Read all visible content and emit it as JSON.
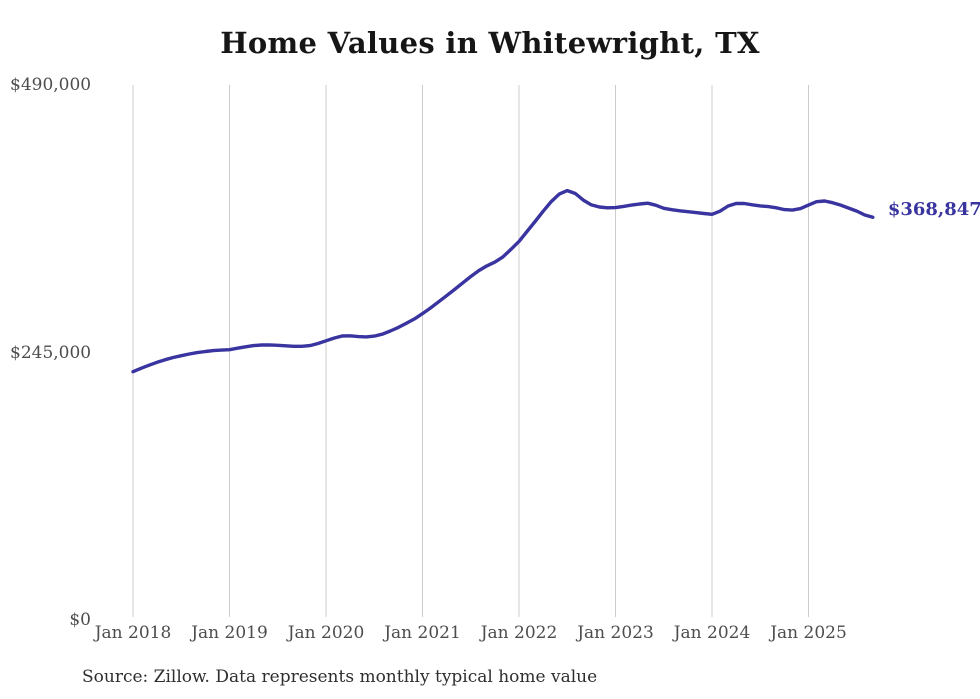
{
  "title": "Home Values in Whitewright, TX",
  "source_note": "Source: Zillow. Data represents monthly typical home value",
  "end_label": "$368,847",
  "colors": {
    "line": "#39349f",
    "grid": "#cccccc",
    "axis_text": "#4d4d4d",
    "title_text": "#161616",
    "source_text": "#2e2e2e",
    "end_label_text": "#39349f"
  },
  "chart_data": {
    "type": "line",
    "title": "Home Values in Whitewright, TX",
    "xlabel": "",
    "ylabel": "",
    "ylim": [
      0,
      490000
    ],
    "grid": "vertical-only",
    "legend": "none",
    "frequency": "monthly",
    "x_start": "Jan 2018",
    "x_end": "Sep 2025",
    "x_tick_labels": [
      "Jan 2018",
      "Jan 2019",
      "Jan 2020",
      "Jan 2021",
      "Jan 2022",
      "Jan 2023",
      "Jan 2024",
      "Jan 2025"
    ],
    "y_ticks": [
      {
        "label": "$490,000",
        "value": 490000
      },
      {
        "label": "$245,000",
        "value": 245000
      },
      {
        "label": "$0",
        "value": 0
      }
    ],
    "end_value": 368847,
    "series": [
      {
        "name": "Typical home value",
        "values": [
          227400,
          230500,
          233400,
          236000,
          238400,
          240400,
          242100,
          243600,
          244900,
          245900,
          246700,
          247200,
          247600,
          248900,
          250200,
          251300,
          251900,
          252000,
          251600,
          251100,
          250700,
          250700,
          251300,
          253200,
          255700,
          258200,
          260100,
          260300,
          259600,
          259300,
          260000,
          261800,
          264700,
          268000,
          271800,
          275800,
          280600,
          285800,
          291400,
          297000,
          302800,
          308700,
          314600,
          320000,
          324300,
          327800,
          332600,
          339500,
          346800,
          355800,
          365000,
          374300,
          383200,
          390100,
          393300,
          390600,
          384600,
          380200,
          378300,
          377500,
          377700,
          378800,
          380000,
          381000,
          381700,
          379900,
          377100,
          375800,
          374800,
          374000,
          373100,
          372300,
          371600,
          374400,
          379200,
          381500,
          381500,
          380300,
          379300,
          378600,
          377500,
          375900,
          375400,
          376800,
          380000,
          383100,
          383800,
          382200,
          380000,
          377300,
          374500,
          370900,
          368847
        ]
      }
    ]
  }
}
